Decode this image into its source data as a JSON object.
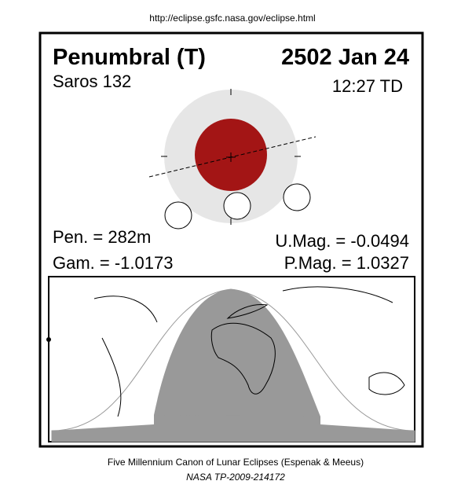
{
  "header": {
    "url": "http://eclipse.gsfc.nasa.gov/eclipse.html"
  },
  "eclipse": {
    "type": "Penumbral (T)",
    "date": "2502 Jan 24",
    "saros": "Saros 132",
    "time": "12:27 TD",
    "pen": "Pen. = 282m",
    "gam": "Gam. = -1.0173",
    "umag": "U.Mag. = -0.0494",
    "pmag": "P.Mag. = 1.0327"
  },
  "footer": {
    "canon": "Five Millennium Canon of Lunar Eclipses (Espenak & Meeus)",
    "ref": "NASA TP-2009-214172"
  }
}
